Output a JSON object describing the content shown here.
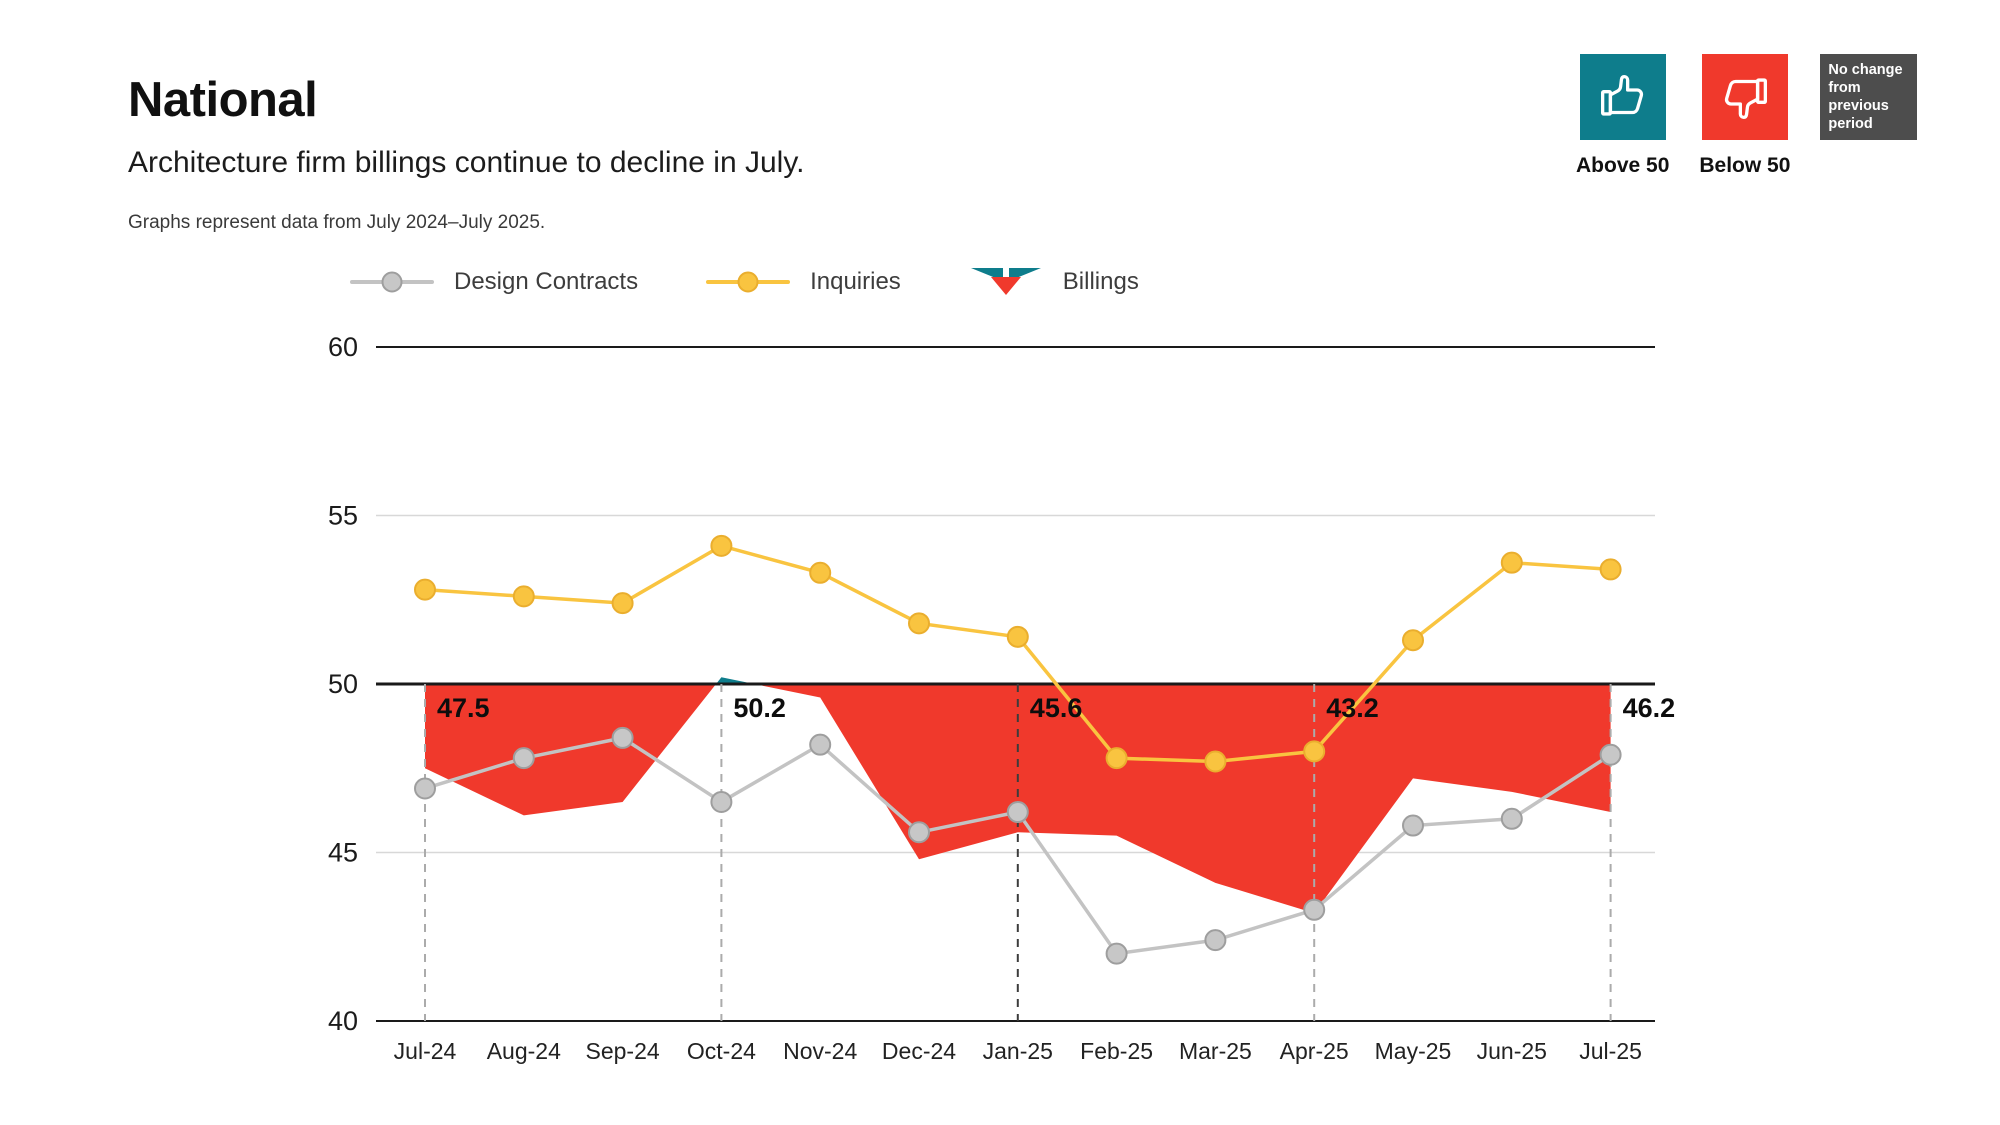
{
  "header": {
    "title": "National",
    "subtitle": "Architecture firm billings continue to decline in July.",
    "caption": "Graphs represent data from July 2024–July 2025."
  },
  "key": {
    "above_label": "Above 50",
    "below_label": "Below 50",
    "no_change_label": "No change from previous period"
  },
  "legend": {
    "items": [
      {
        "label": "Design Contracts"
      },
      {
        "label": "Inquiries"
      },
      {
        "label": "Billings"
      }
    ]
  },
  "colors": {
    "teal": "#0E7D8C",
    "red": "#F0392C",
    "yellow": "#F9C440",
    "yellow_edge": "#EAAE2E",
    "gray_line": "#C3C3C3",
    "gray_dot": "#C7C7C7",
    "gray_dot_edge": "#9E9E9E",
    "grid_light": "#D8D8D8",
    "axis_dark": "#1A1A1A",
    "dash_light": "#ABABAB",
    "dash_dark": "#3C3C3C",
    "note_bg": "#4D4D4D"
  },
  "chart_data": {
    "type": "line",
    "title": "National Architecture Billings Index, July 2024 - July 2025",
    "baseline": 50,
    "ylim": [
      40,
      60
    ],
    "yticks": [
      40,
      45,
      50,
      55,
      60
    ],
    "grid": "horizontal",
    "legend_position": "top",
    "categories": [
      "Jul-24",
      "Aug-24",
      "Sep-24",
      "Oct-24",
      "Nov-24",
      "Dec-24",
      "Jan-25",
      "Feb-25",
      "Mar-25",
      "Apr-25",
      "May-25",
      "Jun-25",
      "Jul-25"
    ],
    "series": [
      {
        "name": "Design Contracts",
        "style": "line-dot",
        "values": [
          46.9,
          47.8,
          48.4,
          46.5,
          48.2,
          45.6,
          46.2,
          42.0,
          42.4,
          43.3,
          45.8,
          46.0,
          47.9
        ]
      },
      {
        "name": "Inquiries",
        "style": "line-dot",
        "values": [
          52.8,
          52.6,
          52.4,
          54.1,
          53.3,
          51.8,
          51.4,
          47.8,
          47.7,
          48.0,
          51.3,
          53.6,
          53.4
        ]
      },
      {
        "name": "Billings",
        "style": "area-vs-baseline",
        "values": [
          47.5,
          46.1,
          46.5,
          50.2,
          49.6,
          44.8,
          45.6,
          45.5,
          44.1,
          43.2,
          47.2,
          46.8,
          46.2
        ]
      }
    ],
    "annotations": [
      {
        "month": "Jul-24",
        "label": "47.5",
        "value": 47.5,
        "emphasis": false
      },
      {
        "month": "Oct-24",
        "label": "50.2",
        "value": 50.2,
        "emphasis": false
      },
      {
        "month": "Jan-25",
        "label": "45.6",
        "value": 45.6,
        "emphasis": true
      },
      {
        "month": "Apr-25",
        "label": "43.2",
        "value": 43.2,
        "emphasis": false
      },
      {
        "month": "Jul-25",
        "label": "46.2",
        "value": 46.2,
        "emphasis": false
      }
    ]
  }
}
